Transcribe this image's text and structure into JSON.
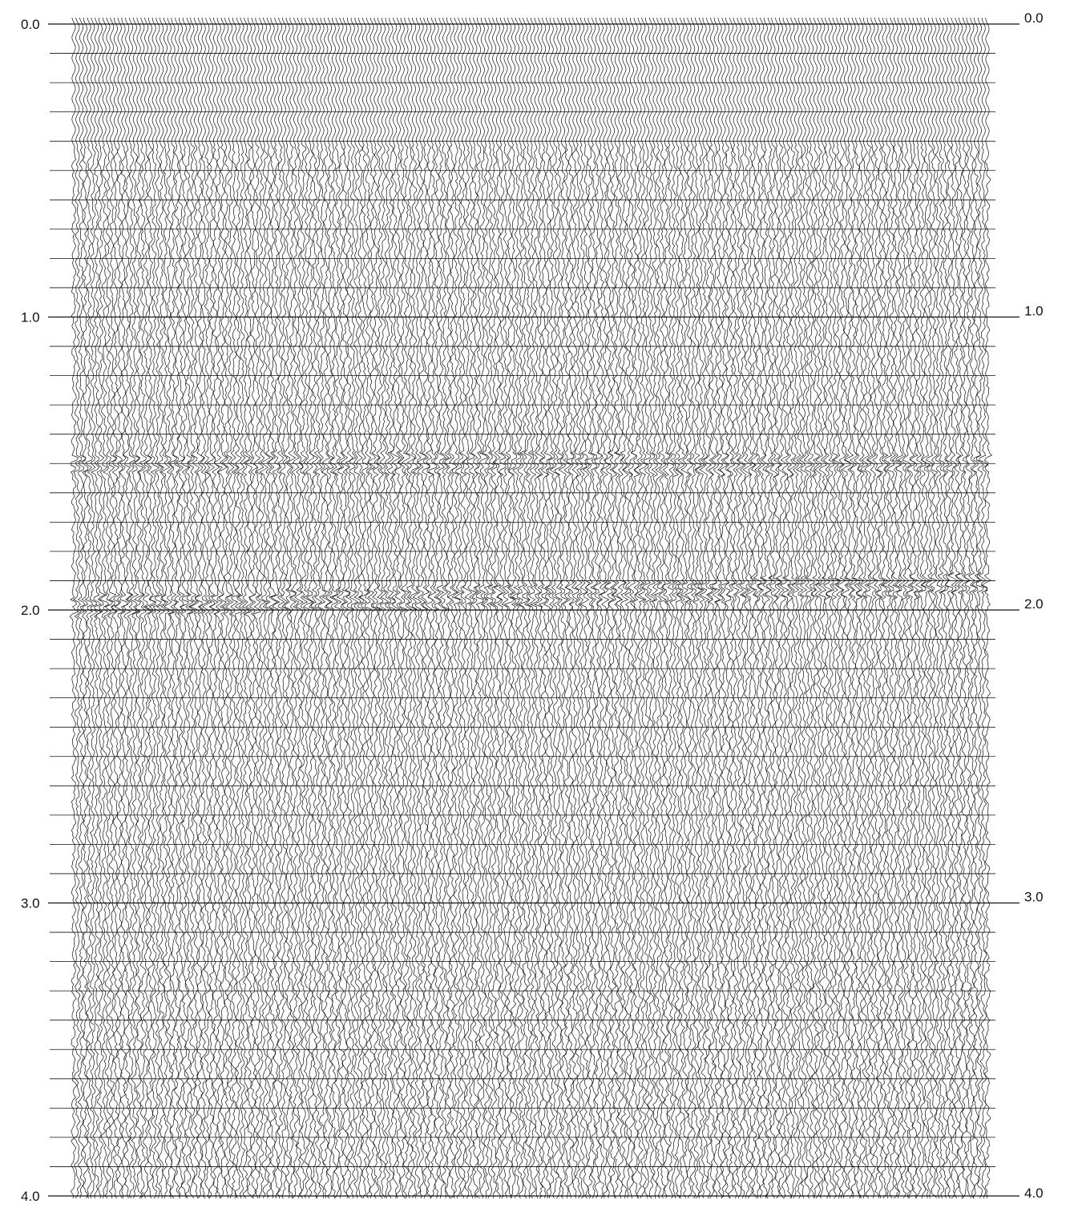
{
  "chart_data": {
    "type": "seismic-wiggle-section",
    "title": "",
    "xlabel": "",
    "ylabel": "",
    "y_axis": {
      "range": [
        0.0,
        4.0
      ],
      "direction": "downward",
      "left_tick_labels": [
        "0.0",
        "1.0",
        "2.0",
        "3.0",
        "4.0"
      ],
      "right_tick_labels": [
        "0.0",
        "1.0",
        "2.0",
        "3.0",
        "4.0"
      ],
      "minor_timing_line_interval": 0.1,
      "major_timing_line_interval": 1.0
    },
    "traces": {
      "approximate_count": 240,
      "display": "wiggle",
      "line_color": "#111111"
    },
    "coherent_reflections": [
      {
        "start_time": 0.0,
        "end_time": 0.4,
        "note": "strong early arrivals"
      },
      {
        "time": 1.5,
        "note": "reflector band"
      },
      {
        "time": 1.95,
        "note": "dipping reflector band"
      }
    ],
    "grid": true,
    "background_color": "#ffffff"
  }
}
